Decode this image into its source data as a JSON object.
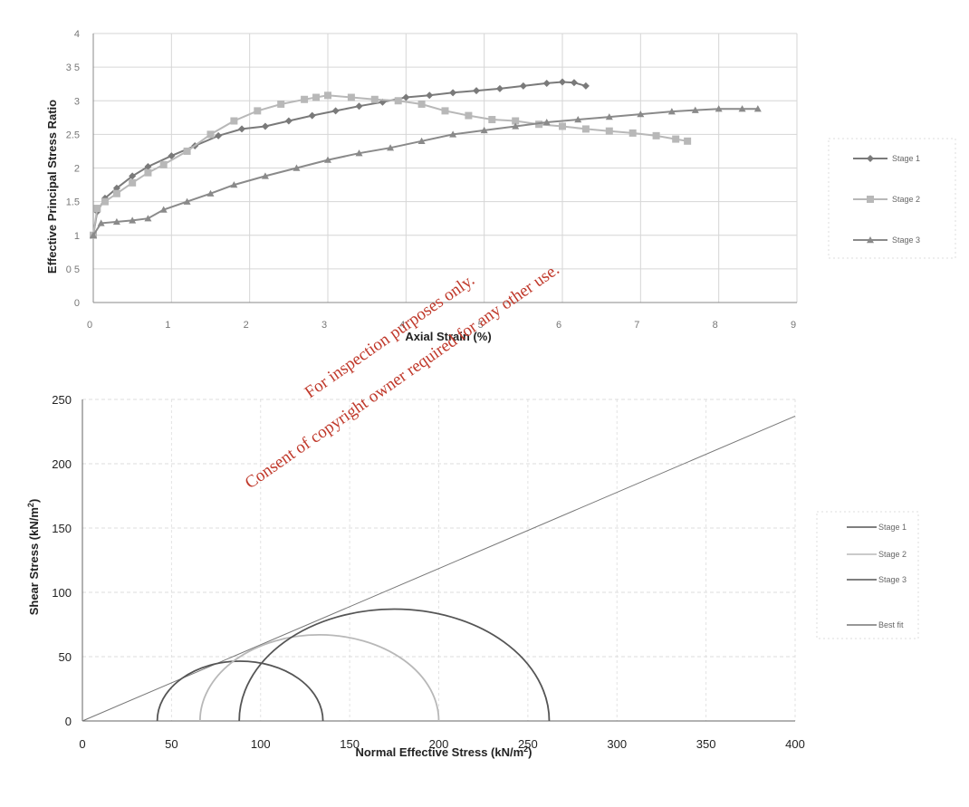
{
  "chart_data": [
    {
      "type": "line",
      "xlabel": "Axial Strain (%)",
      "ylabel": "Effective Principal Stress Ratio",
      "xlim": [
        0,
        9
      ],
      "ylim": [
        0,
        4
      ],
      "x_ticks": [
        "0",
        "1",
        "2",
        "3",
        "4",
        "5",
        "6",
        "7",
        "8",
        "9"
      ],
      "y_ticks": [
        "0",
        "0 5",
        "1",
        "1.5",
        "2",
        "2.5",
        "3",
        "3 5",
        "4"
      ],
      "grid": true,
      "legend_position": "right",
      "series": [
        {
          "name": "Stage 1",
          "marker": "diamond",
          "color": "#7a7a7a",
          "x": [
            0,
            0.05,
            0.15,
            0.3,
            0.5,
            0.7,
            1.0,
            1.3,
            1.6,
            1.9,
            2.2,
            2.5,
            2.8,
            3.1,
            3.4,
            3.7,
            4.0,
            4.3,
            4.6,
            4.9,
            5.2,
            5.5,
            5.8,
            6.0,
            6.15,
            6.3
          ],
          "y": [
            1.0,
            1.35,
            1.55,
            1.7,
            1.88,
            2.02,
            2.18,
            2.33,
            2.48,
            2.58,
            2.62,
            2.7,
            2.78,
            2.85,
            2.92,
            2.98,
            3.05,
            3.08,
            3.12,
            3.15,
            3.18,
            3.22,
            3.26,
            3.28,
            3.27,
            3.22
          ]
        },
        {
          "name": "Stage 2",
          "marker": "square",
          "color": "#b8b8b8",
          "x": [
            0,
            0.05,
            0.15,
            0.3,
            0.5,
            0.7,
            0.9,
            1.2,
            1.5,
            1.8,
            2.1,
            2.4,
            2.7,
            2.85,
            3.0,
            3.3,
            3.6,
            3.9,
            4.2,
            4.5,
            4.8,
            5.1,
            5.4,
            5.7,
            6.0,
            6.3,
            6.6,
            6.9,
            7.2,
            7.45,
            7.6
          ],
          "y": [
            1.0,
            1.4,
            1.5,
            1.62,
            1.78,
            1.93,
            2.05,
            2.25,
            2.5,
            2.7,
            2.85,
            2.95,
            3.02,
            3.05,
            3.08,
            3.05,
            3.02,
            3.0,
            2.95,
            2.85,
            2.78,
            2.72,
            2.7,
            2.65,
            2.62,
            2.58,
            2.55,
            2.52,
            2.48,
            2.43,
            2.4
          ]
        },
        {
          "name": "Stage 3",
          "marker": "triangle",
          "color": "#8a8a8a",
          "x": [
            0,
            0.1,
            0.3,
            0.5,
            0.7,
            0.9,
            1.2,
            1.5,
            1.8,
            2.2,
            2.6,
            3.0,
            3.4,
            3.8,
            4.2,
            4.6,
            5.0,
            5.4,
            5.8,
            6.2,
            6.6,
            7.0,
            7.4,
            7.7,
            8.0,
            8.3,
            8.5
          ],
          "y": [
            1.0,
            1.18,
            1.2,
            1.22,
            1.25,
            1.38,
            1.5,
            1.62,
            1.75,
            1.88,
            2.0,
            2.12,
            2.22,
            2.3,
            2.4,
            2.5,
            2.56,
            2.62,
            2.68,
            2.72,
            2.76,
            2.8,
            2.84,
            2.86,
            2.88,
            2.88,
            2.88
          ]
        }
      ]
    },
    {
      "type": "line",
      "xlabel": "Normal Effective Stress (kN/m",
      "xlabel_sup": "2",
      "xlabel_end": ")",
      "ylabel": "Shear Stress (kN/m",
      "ylabel_sup": "2",
      "ylabel_end": ")",
      "xlim": [
        0,
        400
      ],
      "ylim": [
        0,
        250
      ],
      "x_ticks": [
        "0",
        "50",
        "100",
        "150",
        "200",
        "250",
        "300",
        "350",
        "400"
      ],
      "y_ticks": [
        "0",
        "50",
        "100",
        "150",
        "200",
        "250"
      ],
      "grid": true,
      "legend_position": "right",
      "circles": [
        {
          "name": "Stage 1",
          "center": 88.5,
          "radius": 46.5,
          "color": "#555555"
        },
        {
          "name": "Stage 2",
          "center": 133,
          "radius": 67,
          "color": "#b8b8b8"
        },
        {
          "name": "Stage 3",
          "center": 175,
          "radius": 87,
          "color": "#555555"
        }
      ],
      "best_fit": {
        "name": "Best fit",
        "x": [
          0,
          400
        ],
        "y": [
          0,
          237
        ],
        "color": "#777777"
      }
    }
  ],
  "watermark": {
    "line1": "For inspection purposes only.",
    "line2": "Consent of copyright owner required for any other use."
  }
}
